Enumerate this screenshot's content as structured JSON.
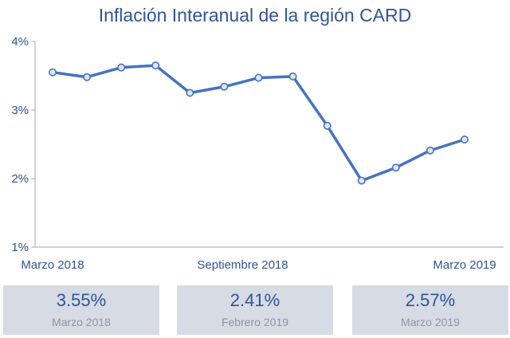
{
  "chart_data": {
    "type": "line",
    "title": "Inflación Interanual de la región CARD",
    "xlabel": "",
    "ylabel": "",
    "ylim": [
      1,
      4
    ],
    "yticks": [
      1,
      2,
      3,
      4
    ],
    "ytick_labels": [
      "1%",
      "2%",
      "3%",
      "4%"
    ],
    "x_labels": [
      "Marzo 2018",
      "Septiembre 2018",
      "Marzo 2019"
    ],
    "x": [
      "2018-03",
      "2018-04",
      "2018-05",
      "2018-06",
      "2018-07",
      "2018-08",
      "2018-09",
      "2018-10",
      "2018-11",
      "2018-12",
      "2019-01",
      "2019-02",
      "2019-03"
    ],
    "series": [
      {
        "values": [
          3.55,
          3.48,
          3.62,
          3.65,
          3.25,
          3.34,
          3.47,
          3.49,
          2.77,
          1.97,
          2.16,
          2.41,
          2.57
        ],
        "color": "#4472c4"
      }
    ],
    "grid": false,
    "legend": "none"
  },
  "cards": [
    {
      "value": "3.55%",
      "label": "Marzo 2018"
    },
    {
      "value": "2.41%",
      "label": "Febrero 2019"
    },
    {
      "value": "2.57%",
      "label": "Marzo 2019"
    }
  ],
  "colors": {
    "accent": "#2f5597",
    "line": "#4472c4",
    "card_bg": "#d6dbe4",
    "card_label": "#8f96a3"
  }
}
